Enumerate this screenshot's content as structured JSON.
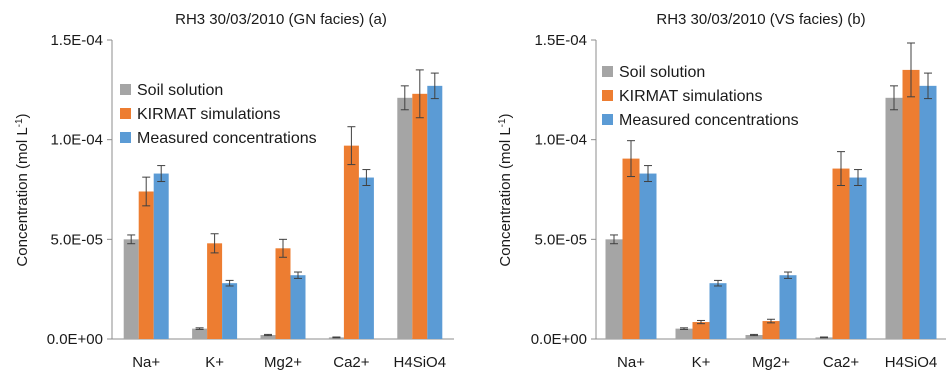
{
  "chart_data": [
    {
      "type": "bar",
      "title": "RH3 30/03/2010 (GN facies)  (a)",
      "ylabel": "Concentration (mol L",
      "ylabel_sup": "-1",
      "ylabel_close": ")",
      "categories": [
        "Na+",
        "K+",
        "Mg2+",
        "Ca2+",
        "H4SiO4"
      ],
      "yticks": [
        "0.0E+00",
        "5.0E-05",
        "1.0E-04",
        "1.5E-04"
      ],
      "ylim": [
        0,
        0.00015
      ],
      "grid": false,
      "legend_position": "top-left",
      "series": [
        {
          "name": "Soil solution",
          "color": "#a5a5a5",
          "values": [
            5e-05,
            5.2e-06,
            2e-06,
            8e-07,
            0.000121
          ],
          "errors": [
            2.2e-06,
            4e-07,
            3e-07,
            2e-07,
            6e-06
          ]
        },
        {
          "name": "KIRMAT simulations",
          "color": "#ed7d31",
          "values": [
            7.4e-05,
            4.8e-05,
            4.55e-05,
            9.7e-05,
            0.000123
          ],
          "errors": [
            7.2e-06,
            4.8e-06,
            4.5e-06,
            9.5e-06,
            1.2e-05
          ]
        },
        {
          "name": "Measured concentrations",
          "color": "#5b9bd5",
          "values": [
            8.3e-05,
            2.8e-05,
            3.2e-05,
            8.1e-05,
            0.000127
          ],
          "errors": [
            4e-06,
            1.4e-06,
            1.6e-06,
            4e-06,
            6.4e-06
          ]
        }
      ]
    },
    {
      "type": "bar",
      "title": "RH3 30/03/2010 (VS facies)  (b)",
      "ylabel": "Concentration (mol L",
      "ylabel_sup": "-1",
      "ylabel_close": ")",
      "categories": [
        "Na+",
        "K+",
        "Mg2+",
        "Ca2+",
        "H4SiO4"
      ],
      "yticks": [
        "0.0E+00",
        "5.0E-05",
        "1.0E-04",
        "1.5E-04"
      ],
      "ylim": [
        0,
        0.00015
      ],
      "grid": false,
      "legend_position": "top-left",
      "series": [
        {
          "name": "Soil solution",
          "color": "#a5a5a5",
          "values": [
            5e-05,
            5.2e-06,
            2e-06,
            8e-07,
            0.000121
          ],
          "errors": [
            2.2e-06,
            4e-07,
            3e-07,
            2e-07,
            6e-06
          ]
        },
        {
          "name": "KIRMAT simulations",
          "color": "#ed7d31",
          "values": [
            9.05e-05,
            8.5e-06,
            9e-06,
            8.55e-05,
            0.000135
          ],
          "errors": [
            9e-06,
            8e-07,
            9e-07,
            8.5e-06,
            1.35e-05
          ]
        },
        {
          "name": "Measured concentrations",
          "color": "#5b9bd5",
          "values": [
            8.3e-05,
            2.8e-05,
            3.2e-05,
            8.1e-05,
            0.000127
          ],
          "errors": [
            4e-06,
            1.4e-06,
            1.6e-06,
            4e-06,
            6.4e-06
          ]
        }
      ]
    }
  ]
}
